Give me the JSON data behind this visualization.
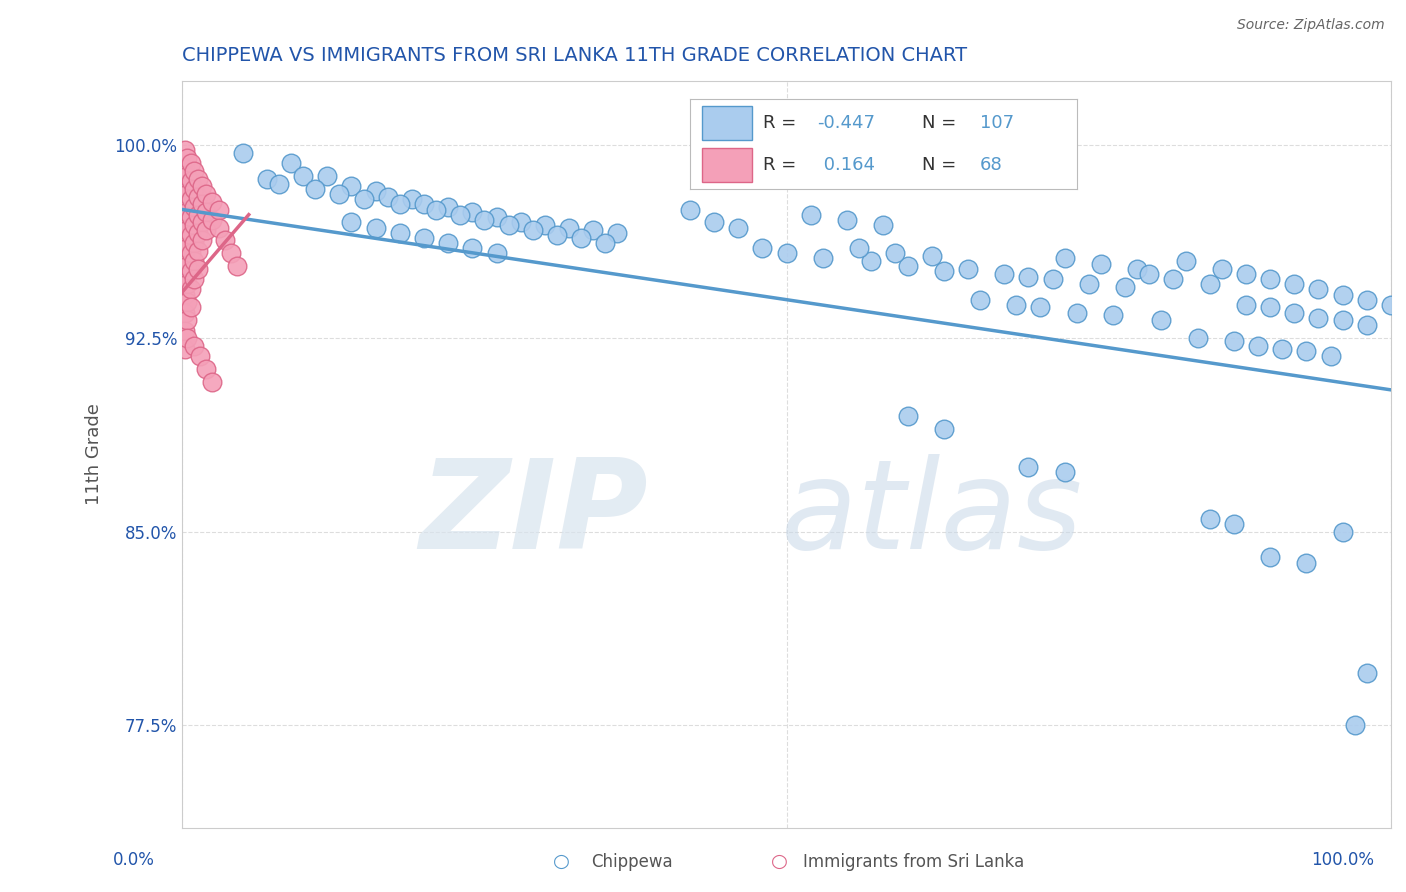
{
  "title": "CHIPPEWA VS IMMIGRANTS FROM SRI LANKA 11TH GRADE CORRELATION CHART",
  "source": "Source: ZipAtlas.com",
  "ylabel": "11th Grade",
  "y_tick_labels": [
    "77.5%",
    "85.0%",
    "92.5%",
    "100.0%"
  ],
  "y_tick_values": [
    0.775,
    0.85,
    0.925,
    1.0
  ],
  "x_range": [
    0.0,
    1.0
  ],
  "y_range": [
    0.735,
    1.025
  ],
  "legend_blue_r": "-0.447",
  "legend_blue_n": "107",
  "legend_pink_r": "0.164",
  "legend_pink_n": "68",
  "blue_color": "#aaccee",
  "pink_color": "#f4a0b8",
  "blue_edge_color": "#5599cc",
  "pink_edge_color": "#dd6688",
  "blue_trend": {
    "x_start": 0.0,
    "y_start": 0.975,
    "x_end": 1.0,
    "y_end": 0.905
  },
  "pink_trend": {
    "x_start": 0.0,
    "y_start": 0.943,
    "x_end": 0.055,
    "y_end": 0.973
  },
  "blue_scatter": [
    [
      0.05,
      0.997
    ],
    [
      0.09,
      0.993
    ],
    [
      0.1,
      0.988
    ],
    [
      0.12,
      0.988
    ],
    [
      0.14,
      0.984
    ],
    [
      0.16,
      0.982
    ],
    [
      0.17,
      0.98
    ],
    [
      0.19,
      0.979
    ],
    [
      0.2,
      0.977
    ],
    [
      0.22,
      0.976
    ],
    [
      0.24,
      0.974
    ],
    [
      0.26,
      0.972
    ],
    [
      0.28,
      0.97
    ],
    [
      0.3,
      0.969
    ],
    [
      0.32,
      0.968
    ],
    [
      0.34,
      0.967
    ],
    [
      0.36,
      0.966
    ],
    [
      0.07,
      0.987
    ],
    [
      0.08,
      0.985
    ],
    [
      0.11,
      0.983
    ],
    [
      0.13,
      0.981
    ],
    [
      0.15,
      0.979
    ],
    [
      0.18,
      0.977
    ],
    [
      0.21,
      0.975
    ],
    [
      0.23,
      0.973
    ],
    [
      0.25,
      0.971
    ],
    [
      0.27,
      0.969
    ],
    [
      0.29,
      0.967
    ],
    [
      0.31,
      0.965
    ],
    [
      0.33,
      0.964
    ],
    [
      0.35,
      0.962
    ],
    [
      0.14,
      0.97
    ],
    [
      0.16,
      0.968
    ],
    [
      0.18,
      0.966
    ],
    [
      0.2,
      0.964
    ],
    [
      0.22,
      0.962
    ],
    [
      0.24,
      0.96
    ],
    [
      0.26,
      0.958
    ],
    [
      0.42,
      0.975
    ],
    [
      0.44,
      0.97
    ],
    [
      0.46,
      0.968
    ],
    [
      0.52,
      0.973
    ],
    [
      0.55,
      0.971
    ],
    [
      0.58,
      0.969
    ],
    [
      0.48,
      0.96
    ],
    [
      0.5,
      0.958
    ],
    [
      0.53,
      0.956
    ],
    [
      0.57,
      0.955
    ],
    [
      0.6,
      0.953
    ],
    [
      0.63,
      0.951
    ],
    [
      0.56,
      0.96
    ],
    [
      0.59,
      0.958
    ],
    [
      0.62,
      0.957
    ],
    [
      0.65,
      0.952
    ],
    [
      0.68,
      0.95
    ],
    [
      0.7,
      0.949
    ],
    [
      0.72,
      0.948
    ],
    [
      0.75,
      0.946
    ],
    [
      0.78,
      0.945
    ],
    [
      0.73,
      0.956
    ],
    [
      0.76,
      0.954
    ],
    [
      0.79,
      0.952
    ],
    [
      0.8,
      0.95
    ],
    [
      0.82,
      0.948
    ],
    [
      0.85,
      0.946
    ],
    [
      0.83,
      0.955
    ],
    [
      0.86,
      0.952
    ],
    [
      0.88,
      0.95
    ],
    [
      0.9,
      0.948
    ],
    [
      0.92,
      0.946
    ],
    [
      0.94,
      0.944
    ],
    [
      0.88,
      0.938
    ],
    [
      0.9,
      0.937
    ],
    [
      0.92,
      0.935
    ],
    [
      0.94,
      0.933
    ],
    [
      0.96,
      0.932
    ],
    [
      0.98,
      0.93
    ],
    [
      0.96,
      0.942
    ],
    [
      0.98,
      0.94
    ],
    [
      1.0,
      0.938
    ],
    [
      0.66,
      0.94
    ],
    [
      0.69,
      0.938
    ],
    [
      0.71,
      0.937
    ],
    [
      0.74,
      0.935
    ],
    [
      0.77,
      0.934
    ],
    [
      0.81,
      0.932
    ],
    [
      0.84,
      0.925
    ],
    [
      0.87,
      0.924
    ],
    [
      0.89,
      0.922
    ],
    [
      0.91,
      0.921
    ],
    [
      0.93,
      0.92
    ],
    [
      0.95,
      0.918
    ],
    [
      0.6,
      0.895
    ],
    [
      0.63,
      0.89
    ],
    [
      0.7,
      0.875
    ],
    [
      0.73,
      0.873
    ],
    [
      0.85,
      0.855
    ],
    [
      0.87,
      0.853
    ],
    [
      0.9,
      0.84
    ],
    [
      0.93,
      0.838
    ],
    [
      0.96,
      0.85
    ],
    [
      0.98,
      0.795
    ],
    [
      0.97,
      0.775
    ]
  ],
  "pink_scatter": [
    [
      0.002,
      0.998
    ],
    [
      0.002,
      0.991
    ],
    [
      0.002,
      0.984
    ],
    [
      0.002,
      0.977
    ],
    [
      0.002,
      0.97
    ],
    [
      0.002,
      0.963
    ],
    [
      0.002,
      0.956
    ],
    [
      0.002,
      0.949
    ],
    [
      0.002,
      0.942
    ],
    [
      0.002,
      0.935
    ],
    [
      0.002,
      0.928
    ],
    [
      0.002,
      0.921
    ],
    [
      0.004,
      0.995
    ],
    [
      0.004,
      0.988
    ],
    [
      0.004,
      0.981
    ],
    [
      0.004,
      0.974
    ],
    [
      0.004,
      0.967
    ],
    [
      0.004,
      0.96
    ],
    [
      0.004,
      0.953
    ],
    [
      0.004,
      0.946
    ],
    [
      0.004,
      0.939
    ],
    [
      0.004,
      0.932
    ],
    [
      0.004,
      0.925
    ],
    [
      0.007,
      0.993
    ],
    [
      0.007,
      0.986
    ],
    [
      0.007,
      0.979
    ],
    [
      0.007,
      0.972
    ],
    [
      0.007,
      0.965
    ],
    [
      0.007,
      0.958
    ],
    [
      0.007,
      0.951
    ],
    [
      0.007,
      0.944
    ],
    [
      0.007,
      0.937
    ],
    [
      0.01,
      0.99
    ],
    [
      0.01,
      0.983
    ],
    [
      0.01,
      0.976
    ],
    [
      0.01,
      0.969
    ],
    [
      0.01,
      0.962
    ],
    [
      0.01,
      0.955
    ],
    [
      0.01,
      0.948
    ],
    [
      0.013,
      0.987
    ],
    [
      0.013,
      0.98
    ],
    [
      0.013,
      0.973
    ],
    [
      0.013,
      0.966
    ],
    [
      0.013,
      0.959
    ],
    [
      0.013,
      0.952
    ],
    [
      0.016,
      0.984
    ],
    [
      0.016,
      0.977
    ],
    [
      0.016,
      0.97
    ],
    [
      0.016,
      0.963
    ],
    [
      0.02,
      0.981
    ],
    [
      0.02,
      0.974
    ],
    [
      0.02,
      0.967
    ],
    [
      0.025,
      0.978
    ],
    [
      0.025,
      0.971
    ],
    [
      0.03,
      0.975
    ],
    [
      0.03,
      0.968
    ],
    [
      0.035,
      0.963
    ],
    [
      0.04,
      0.958
    ],
    [
      0.045,
      0.953
    ],
    [
      0.01,
      0.922
    ],
    [
      0.015,
      0.918
    ],
    [
      0.02,
      0.913
    ],
    [
      0.025,
      0.908
    ]
  ],
  "bg_color": "#ffffff",
  "grid_color": "#dddddd",
  "title_color": "#2255aa",
  "axis_label_color": "#555555",
  "tick_label_color": "#2255aa"
}
